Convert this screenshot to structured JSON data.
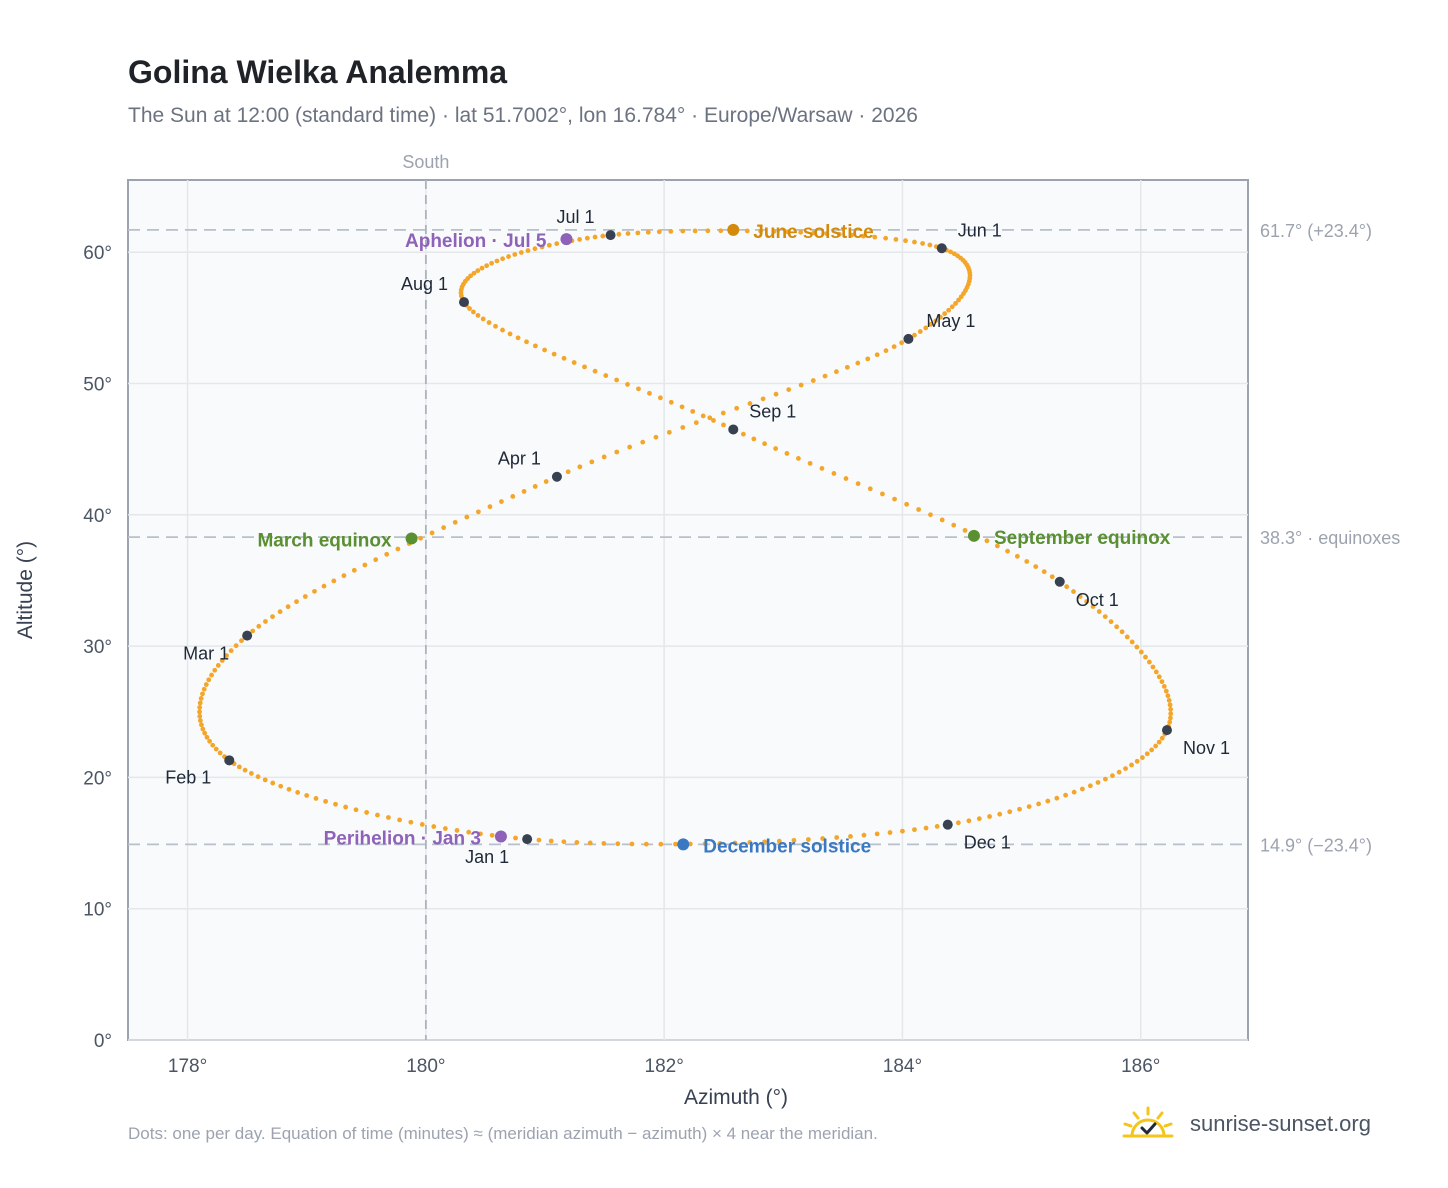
{
  "title": "Golina Wielka Analemma",
  "subtitle": "The Sun at 12:00 (standard time) · lat 51.7002°, lon 16.784° · Europe/Warsaw · 2026",
  "footnote": "Dots: one per day. Equation of time (minutes) ≈ (meridian azimuth − azimuth) × 4 near the meridian.",
  "brand": {
    "name": "sunrise-sunset.org",
    "logo_icon": "sun-check-icon"
  },
  "colors": {
    "trace": "#f4a62a",
    "month_marker": "#374151",
    "equinox": "#5a8f32",
    "june_solstice": "#d48a0b",
    "december_solstice": "#3a78c2",
    "apsis": "#8e62b8"
  },
  "chart_data": {
    "type": "scatter",
    "xlabel": "Azimuth (°)",
    "ylabel": "Altitude (°)",
    "xlim": [
      177.5,
      186.9
    ],
    "ylim": [
      0,
      65.5
    ],
    "xticks": [
      178,
      180,
      182,
      184,
      186
    ],
    "yticks": [
      0,
      10,
      20,
      30,
      40,
      50,
      60
    ],
    "grid": true,
    "south_line": {
      "azimuth": 180,
      "label": "South"
    },
    "reference_lines": [
      {
        "altitude": 61.7,
        "label": "61.7° (+23.4°)"
      },
      {
        "altitude": 38.3,
        "label": "38.3° · equinoxes"
      },
      {
        "altitude": 14.9,
        "label": "14.9° (−23.4°)"
      }
    ],
    "month_markers": [
      {
        "label": "Jan 1",
        "azimuth": 180.85,
        "altitude": 15.3
      },
      {
        "label": "Feb 1",
        "azimuth": 178.35,
        "altitude": 21.3
      },
      {
        "label": "Mar 1",
        "azimuth": 178.5,
        "altitude": 30.8
      },
      {
        "label": "Apr 1",
        "azimuth": 181.1,
        "altitude": 42.9
      },
      {
        "label": "May 1",
        "azimuth": 184.05,
        "altitude": 53.4
      },
      {
        "label": "Jun 1",
        "azimuth": 184.33,
        "altitude": 60.3
      },
      {
        "label": "Jul 1",
        "azimuth": 181.55,
        "altitude": 61.3
      },
      {
        "label": "Aug 1",
        "azimuth": 180.32,
        "altitude": 56.2
      },
      {
        "label": "Sep 1",
        "azimuth": 182.58,
        "altitude": 46.5
      },
      {
        "label": "Oct 1",
        "azimuth": 185.32,
        "altitude": 34.9
      },
      {
        "label": "Nov 1",
        "azimuth": 186.22,
        "altitude": 23.6
      },
      {
        "label": "Dec 1",
        "azimuth": 184.38,
        "altitude": 16.4
      }
    ],
    "events": [
      {
        "label": "March equinox",
        "azimuth": 179.88,
        "altitude": 38.2,
        "color_key": "equinox"
      },
      {
        "label": "June solstice",
        "azimuth": 182.58,
        "altitude": 61.7,
        "color_key": "june_solstice"
      },
      {
        "label": "September equinox",
        "azimuth": 184.6,
        "altitude": 38.4,
        "color_key": "equinox"
      },
      {
        "label": "December solstice",
        "azimuth": 182.16,
        "altitude": 14.9,
        "color_key": "december_solstice"
      },
      {
        "label": "Perihelion · Jan 3",
        "azimuth": 180.63,
        "altitude": 15.5,
        "color_key": "apsis"
      },
      {
        "label": "Aphelion · Jul 5",
        "azimuth": 181.18,
        "altitude": 61.0,
        "color_key": "apsis"
      }
    ]
  }
}
